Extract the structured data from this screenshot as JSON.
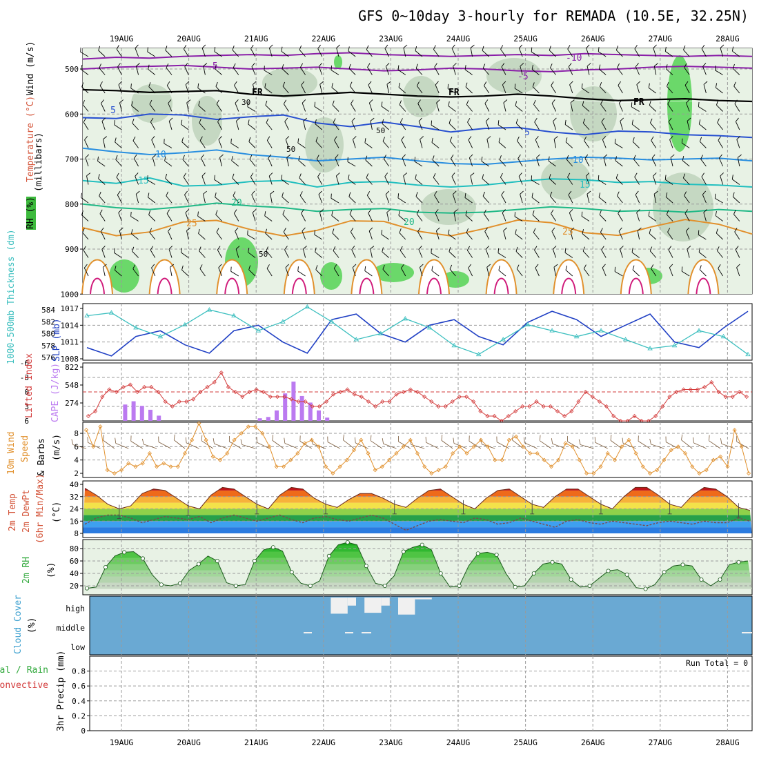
{
  "title": "GFS 0~10day 3-hourly for REMADA (10.5E, 32.25N)",
  "dates": [
    "19AUG",
    "20AUG",
    "21AUG",
    "22AUG",
    "23AUG",
    "24AUG",
    "25AUG",
    "26AUG",
    "27AUG",
    "28AUG"
  ],
  "colors": {
    "grid": "#9a9a9a",
    "rhFill": "#e8f2e5",
    "cloud": "#6aa9d3",
    "slp": "#1f3fc4",
    "thick": "#3cbfbf",
    "li": "#d33a3a",
    "cape": "#bb7af0",
    "wind": "#e1902c",
    "rh2m": "#2fa83a"
  },
  "panels": {
    "profile": {
      "ylabel_units": "(millibars)",
      "label_wind": "Wind (m/s)",
      "label_temp": "Temperature (°C)",
      "label_rh": "RH (%)"
    },
    "slp": {
      "label_thk": "1000-500mb Thickness (dm)",
      "label_slp": "SLP (mb)"
    },
    "li": {
      "label_li": "Lifted Index",
      "label_cape": "CAPE (J/kg)"
    },
    "wind10": {
      "label1": "10m Wind",
      "label2": "Speed",
      "label3": "& Barbs",
      "units": "(m/s)"
    },
    "temp2m": {
      "label1": "2m Temp",
      "label2": "2m DewPt",
      "label3": "(6hr Min/Max)",
      "units": "(°C)"
    },
    "rh2m": {
      "label": "2m RH",
      "units": "(%)"
    },
    "cloud": {
      "label": "Cloud Cover",
      "units": "(%)",
      "levels": [
        "high",
        "middle",
        "low"
      ]
    },
    "precip": {
      "label_total": "Total / Rain",
      "label_conv": "Convective",
      "label_precip": "3hr Precip (mm)",
      "run_total": "Run Total = 0"
    }
  },
  "chart_data": [
    {
      "type": "contour",
      "title": "Vertical profile: temperature (°C) and RH (%) with wind barbs",
      "ylabel": "millibars",
      "yticks": [
        500,
        600,
        700,
        800,
        900,
        1000
      ],
      "ylim": [
        1000,
        450
      ],
      "isotherm_labels": [
        "-10",
        "-5",
        "FR",
        "5",
        "10",
        "15",
        "20",
        "25"
      ],
      "isotherms": [
        {
          "label": "-10",
          "pressure": [
            478,
            474,
            476,
            472,
            470,
            468,
            470,
            466,
            464,
            468,
            470,
            472,
            470,
            468,
            470,
            466,
            468,
            470,
            472,
            470,
            472
          ]
        },
        {
          "label": "-5",
          "pressure": [
            500,
            496,
            494,
            492,
            496,
            500,
            498,
            496,
            500,
            504,
            502,
            498,
            500,
            504,
            506,
            502,
            500,
            496,
            494,
            496,
            498
          ]
        },
        {
          "label": "FR",
          "pressure": [
            546,
            548,
            552,
            550,
            548,
            556,
            560,
            556,
            552,
            556,
            560,
            562,
            560,
            556,
            560,
            566,
            570,
            568,
            566,
            570,
            572
          ]
        },
        {
          "label": "5",
          "pressure": [
            608,
            610,
            600,
            602,
            612,
            606,
            602,
            620,
            628,
            618,
            628,
            640,
            632,
            630,
            640,
            646,
            638,
            640,
            646,
            648,
            652
          ]
        },
        {
          "label": "10",
          "pressure": [
            676,
            684,
            690,
            686,
            680,
            690,
            696,
            704,
            700,
            696,
            704,
            710,
            712,
            706,
            700,
            696,
            698,
            702,
            700,
            698,
            704
          ]
        },
        {
          "label": "15",
          "pressure": [
            748,
            754,
            742,
            760,
            758,
            750,
            748,
            762,
            752,
            750,
            758,
            762,
            758,
            750,
            744,
            746,
            752,
            750,
            756,
            758,
            762
          ]
        },
        {
          "label": "20",
          "pressure": [
            800,
            808,
            812,
            806,
            798,
            804,
            808,
            816,
            812,
            810,
            818,
            820,
            818,
            812,
            806,
            810,
            816,
            814,
            818,
            812,
            816
          ]
        }
      ],
      "rh_contour_labels": [
        "30",
        "50",
        "50",
        "50"
      ]
    },
    {
      "type": "line",
      "title": "SLP and 1000-500mb thickness",
      "x": [
        0,
        9,
        18,
        27,
        36,
        45,
        54,
        63,
        72,
        81,
        90,
        99,
        108,
        117,
        126,
        135,
        144,
        153,
        162,
        171,
        180,
        189,
        198,
        207,
        216,
        225,
        234,
        243
      ],
      "series": [
        {
          "name": "SLP (mb)",
          "values": [
            1010,
            1008.5,
            1012,
            1013,
            1010.5,
            1009,
            1013,
            1014,
            1011,
            1009,
            1015,
            1016,
            1012.5,
            1011,
            1014,
            1015,
            1012,
            1010.5,
            1014.5,
            1016.5,
            1015,
            1012,
            1014,
            1016,
            1011,
            1010,
            1013.5,
            1016.5
          ]
        },
        {
          "name": "Thickness (dm)",
          "values": [
            583,
            583.5,
            581,
            579.5,
            581.5,
            584,
            583,
            580.5,
            582,
            584.5,
            582,
            579,
            580,
            582.5,
            581,
            578,
            576.5,
            579,
            581.5,
            580.5,
            579.5,
            580.5,
            579,
            577.5,
            578,
            580.5,
            579.5,
            576.5
          ]
        }
      ],
      "slp_ticks": [
        "1017",
        "1014",
        "1011",
        "1008"
      ],
      "thk_ticks": [
        "584",
        "582",
        "580",
        "578",
        "576"
      ]
    },
    {
      "type": "bar",
      "title": "Lifted Index and CAPE",
      "li_ticks": [
        "-6",
        "-3",
        "0",
        "3",
        "6"
      ],
      "cape_ticks": [
        "822",
        "548",
        "274"
      ],
      "cape_bars": [
        {
          "t": 3,
          "v": 250
        },
        {
          "t": 4,
          "v": 300
        },
        {
          "t": 5,
          "v": 230
        },
        {
          "t": 6,
          "v": 170
        },
        {
          "t": 7,
          "v": 80
        },
        {
          "t": 19,
          "v": 40
        },
        {
          "t": 20,
          "v": 60
        },
        {
          "t": 21,
          "v": 160
        },
        {
          "t": 22,
          "v": 420
        },
        {
          "t": 23,
          "v": 600
        },
        {
          "t": 24,
          "v": 380
        },
        {
          "t": 25,
          "v": 280
        },
        {
          "t": 26,
          "v": 160
        },
        {
          "t": 27,
          "v": 50
        },
        {
          "t": 96,
          "v": 80
        }
      ],
      "li_values": [
        5,
        4,
        1,
        -0.5,
        0,
        -1,
        -1.5,
        0,
        -1,
        -1,
        0,
        2,
        3,
        2,
        2,
        1.5,
        0,
        -1,
        -2,
        -4,
        -1,
        0,
        1,
        0,
        -0.5,
        0,
        1,
        1,
        1,
        1.5,
        2,
        2,
        3,
        3,
        2,
        0.5,
        0,
        -0.5,
        0.5,
        1,
        2,
        3,
        2,
        2,
        0.5,
        0,
        -0.5,
        0,
        1,
        2,
        3,
        3,
        2,
        1,
        1,
        2,
        4,
        5,
        5,
        6,
        5,
        4,
        3,
        3,
        2,
        3,
        3,
        4,
        5,
        4,
        2,
        0,
        1,
        2,
        3,
        5,
        6,
        6,
        5,
        6,
        6,
        5,
        3,
        1,
        0,
        -0.5,
        -0.5,
        -0.5,
        -1,
        -2,
        0,
        1,
        1,
        0,
        1
      ]
    },
    {
      "type": "line",
      "title": "10m Wind Speed",
      "ylabel": "m/s",
      "yticks": [
        2,
        4,
        6,
        8
      ],
      "values": [
        8.5,
        6,
        9,
        2.5,
        2,
        2.5,
        3.5,
        3,
        3.5,
        5,
        3,
        3.5,
        3,
        3,
        5,
        7,
        9.5,
        7,
        4.5,
        4,
        5,
        7,
        8,
        9,
        9,
        8,
        6,
        3,
        3,
        4,
        5,
        6.5,
        7,
        6,
        3,
        2,
        3,
        4,
        5.5,
        7,
        5,
        2.5,
        3,
        4,
        5,
        6,
        7,
        5,
        3,
        2,
        2.5,
        3,
        5,
        6,
        5,
        6,
        7,
        6,
        4,
        4,
        7,
        7.5,
        6,
        5,
        5,
        4,
        3,
        4,
        6.5,
        6,
        4,
        2,
        2,
        3,
        5,
        4,
        6,
        7,
        5,
        3,
        2,
        2.5,
        4,
        5.5,
        6,
        5,
        3,
        2,
        2.5,
        4,
        4.5,
        3,
        8.5,
        6,
        2
      ]
    },
    {
      "type": "area",
      "title": "2m Temp and DewPt",
      "ylabel": "°C",
      "yticks": [
        8,
        16,
        24,
        32,
        40
      ],
      "temperature": [
        37.5,
        33,
        27,
        24,
        26,
        34,
        37,
        36,
        31,
        26,
        24,
        33,
        38,
        37,
        32,
        27,
        24,
        33,
        38,
        37,
        31,
        27,
        25,
        30,
        34,
        34,
        31,
        27,
        25,
        31,
        36,
        37,
        32,
        27,
        24,
        31,
        36,
        37,
        32,
        27,
        25,
        32,
        37,
        37,
        32,
        27,
        24,
        32,
        38,
        38,
        33,
        27,
        25,
        33,
        38,
        37,
        32,
        25,
        23
      ],
      "dewpoint": [
        14,
        18,
        20,
        20,
        18,
        15,
        17,
        19,
        18,
        17,
        19,
        15,
        18,
        20,
        18,
        16,
        18,
        20,
        17,
        15,
        18,
        19,
        17,
        16,
        18,
        20,
        18,
        14,
        10,
        13,
        16,
        17,
        16,
        15,
        18,
        17,
        14,
        15,
        18,
        16,
        14,
        12,
        16,
        17,
        15,
        14,
        16,
        15,
        14,
        13,
        15,
        16,
        15,
        14,
        16,
        15,
        15,
        18,
        16
      ]
    },
    {
      "type": "area",
      "title": "2m RH",
      "ylabel": "%",
      "yticks": [
        20,
        40,
        60,
        80
      ],
      "values": [
        16,
        18,
        50,
        68,
        74,
        75,
        64,
        38,
        22,
        20,
        24,
        45,
        55,
        68,
        60,
        25,
        20,
        22,
        60,
        78,
        82,
        76,
        42,
        24,
        20,
        28,
        68,
        86,
        90,
        86,
        52,
        24,
        20,
        36,
        75,
        82,
        86,
        78,
        40,
        18,
        20,
        52,
        72,
        74,
        70,
        40,
        18,
        20,
        40,
        55,
        58,
        55,
        30,
        18,
        20,
        32,
        44,
        46,
        38,
        17,
        15,
        22,
        42,
        52,
        54,
        52,
        30,
        20,
        30,
        54,
        58,
        60
      ]
    },
    {
      "type": "bar",
      "title": "Cloud Cover",
      "levels": [
        "high",
        "middle",
        "low"
      ],
      "high_blocks": [
        {
          "t0": 28,
          "t1": 30,
          "v": 0.9
        },
        {
          "t0": 30,
          "t1": 31,
          "v": 0.45
        },
        {
          "t0": 32,
          "t1": 34,
          "v": 0.85
        },
        {
          "t0": 34,
          "t1": 35,
          "v": 0.45
        },
        {
          "t0": 36,
          "t1": 38,
          "v": 0.95
        },
        {
          "t0": 38,
          "t1": 40,
          "v": 0.1
        },
        {
          "t0": 90,
          "t1": 92,
          "v": 0.6
        },
        {
          "t0": 92,
          "t1": 94,
          "v": 0.1
        },
        {
          "t0": 98,
          "t1": 99,
          "v": 0.1
        },
        {
          "t0": 100,
          "t1": 101,
          "v": 0.8
        }
      ],
      "mid_blocks": [
        {
          "t0": 93,
          "t1": 98,
          "v": 0.9
        },
        {
          "t0": 92,
          "t1": 93,
          "v": 0.3
        }
      ]
    },
    {
      "type": "bar",
      "title": "3hr Precip (mm)",
      "ylabel": "mm",
      "yticks": [
        0,
        0.2,
        0.4,
        0.6,
        0.8
      ],
      "values": []
    }
  ]
}
